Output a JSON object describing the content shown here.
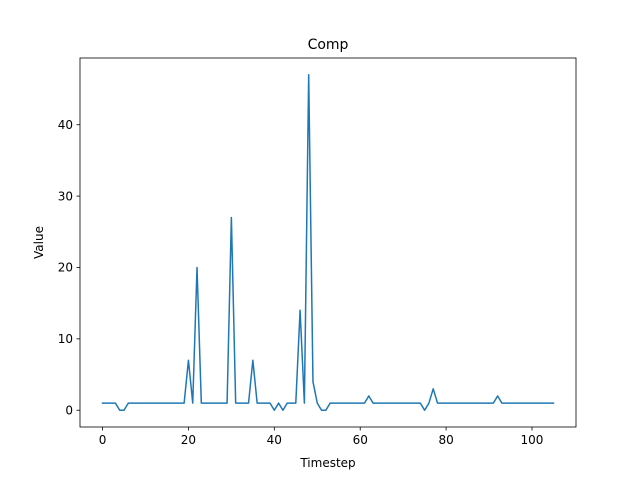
{
  "chart_data": {
    "type": "line",
    "title": "Comp",
    "xlabel": "Timestep",
    "ylabel": "Value",
    "xlim": [
      -5.25,
      110.25
    ],
    "ylim": [
      -2.35,
      49.35
    ],
    "xticks": [
      0,
      20,
      40,
      60,
      80,
      100
    ],
    "yticks": [
      0,
      10,
      20,
      30,
      40
    ],
    "grid": false,
    "line_color": "#1f77b4",
    "series": [
      {
        "x": [
          0,
          1,
          2,
          3,
          4,
          5,
          6,
          7,
          8,
          9,
          10,
          11,
          12,
          13,
          14,
          15,
          16,
          17,
          18,
          19,
          20,
          21,
          22,
          23,
          24,
          25,
          26,
          27,
          28,
          29,
          30,
          31,
          32,
          33,
          34,
          35,
          36,
          37,
          38,
          39,
          40,
          41,
          42,
          43,
          44,
          45,
          46,
          47,
          48,
          49,
          50,
          51,
          52,
          53,
          54,
          55,
          56,
          57,
          58,
          59,
          60,
          61,
          62,
          63,
          64,
          65,
          66,
          67,
          68,
          69,
          70,
          71,
          72,
          73,
          74,
          75,
          76,
          77,
          78,
          79,
          80,
          81,
          82,
          83,
          84,
          85,
          86,
          87,
          88,
          89,
          90,
          91,
          92,
          93,
          94,
          95,
          96,
          97,
          98,
          99,
          100,
          101,
          102,
          103,
          104,
          105
        ],
        "values": [
          1,
          1,
          1,
          1,
          0,
          0,
          1,
          1,
          1,
          1,
          1,
          1,
          1,
          1,
          1,
          1,
          1,
          1,
          1,
          1,
          7,
          1,
          20,
          1,
          1,
          1,
          1,
          1,
          1,
          1,
          27,
          1,
          1,
          1,
          1,
          7,
          1,
          1,
          1,
          1,
          0,
          1,
          0,
          1,
          1,
          1,
          14,
          1,
          47,
          4,
          1,
          0,
          0,
          1,
          1,
          1,
          1,
          1,
          1,
          1,
          1,
          1,
          2,
          1,
          1,
          1,
          1,
          1,
          1,
          1,
          1,
          1,
          1,
          1,
          1,
          0,
          1,
          3,
          1,
          1,
          1,
          1,
          1,
          1,
          1,
          1,
          1,
          1,
          1,
          1,
          1,
          1,
          2,
          1,
          1,
          1,
          1,
          1,
          1,
          1,
          1,
          1,
          1,
          1,
          1,
          1
        ]
      }
    ]
  }
}
